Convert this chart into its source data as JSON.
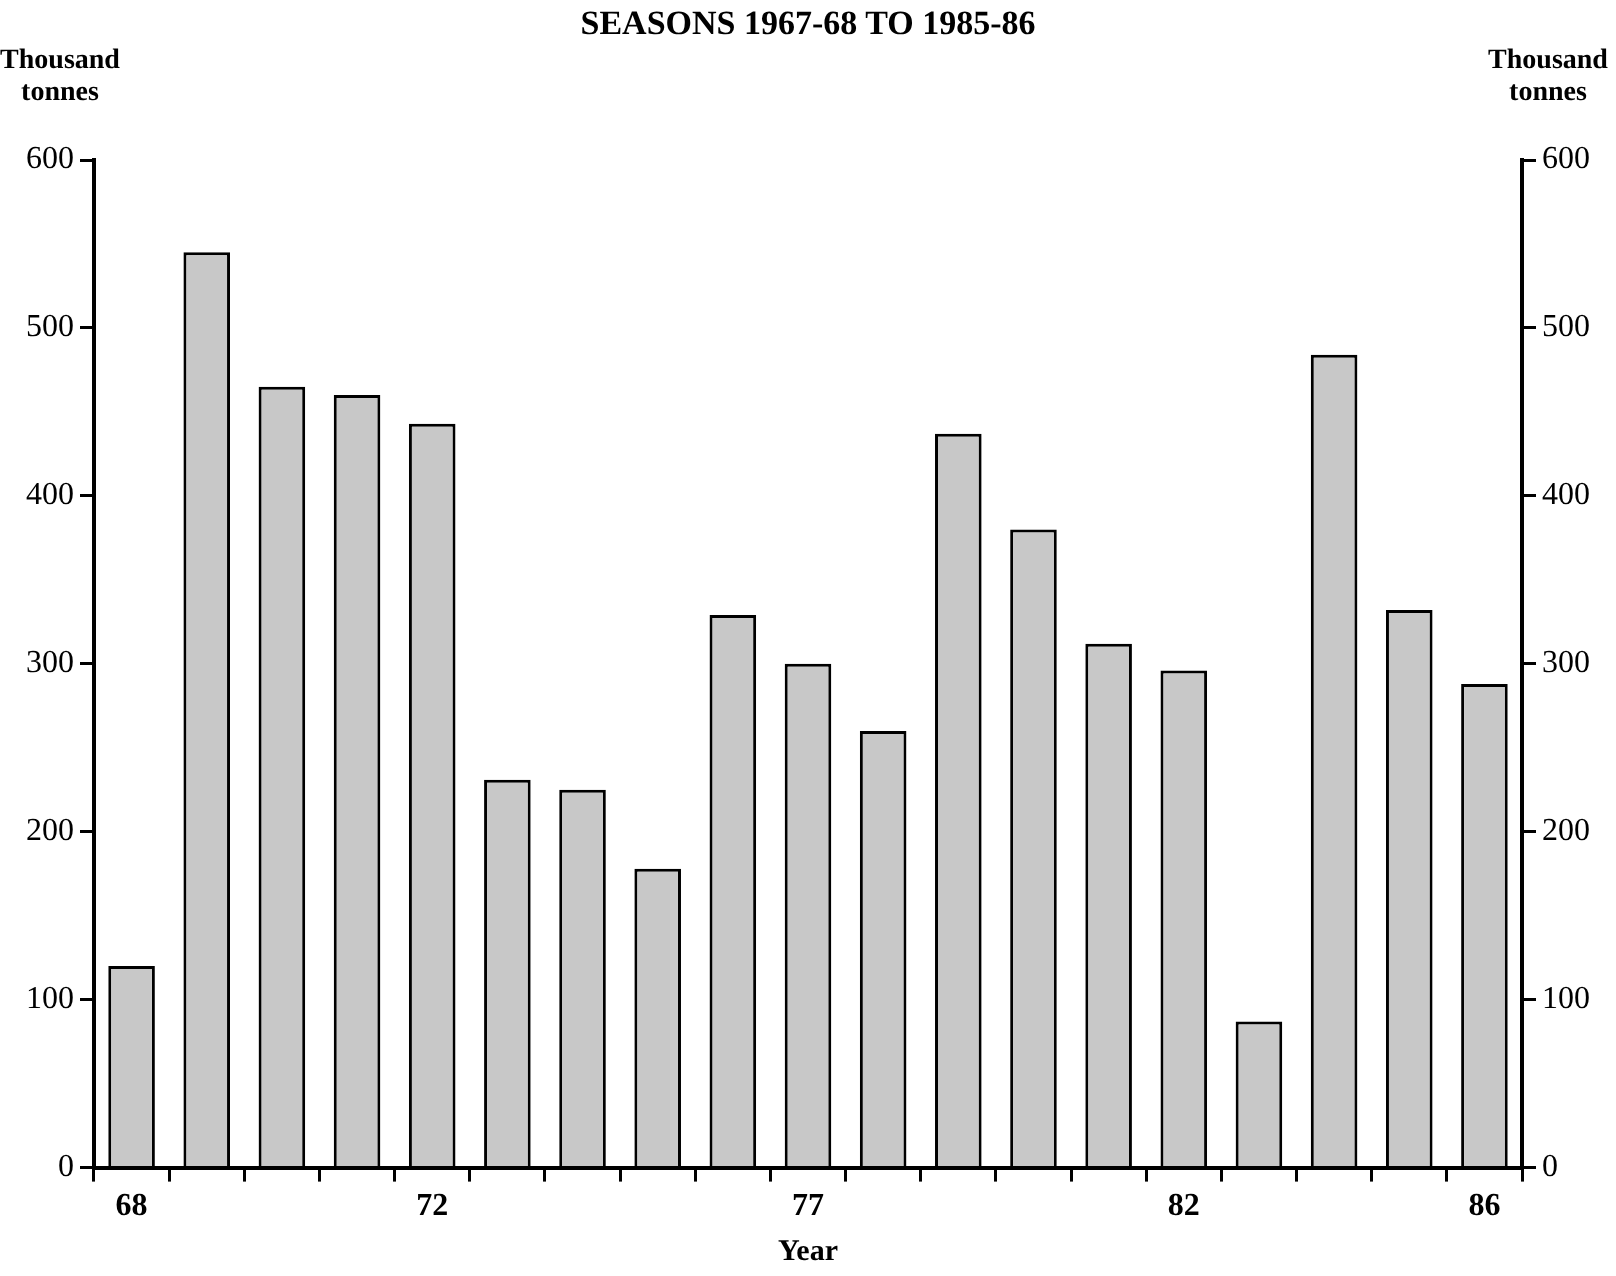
{
  "chart_data": {
    "type": "bar",
    "title": "SEASONS 1967-68 TO 1985-86",
    "xlabel": "Year",
    "ylabel": "Thousand tonnes",
    "y2label": "Thousand tonnes",
    "categories": [
      "68",
      null,
      null,
      null,
      "72",
      null,
      null,
      null,
      null,
      "77",
      null,
      null,
      null,
      null,
      "82",
      null,
      null,
      null,
      "86"
    ],
    "values": [
      120,
      545,
      465,
      460,
      443,
      231,
      225,
      178,
      329,
      300,
      260,
      437,
      380,
      312,
      296,
      87,
      484,
      332,
      288
    ],
    "color": "#c8c8c8",
    "ylim": [
      0,
      600
    ],
    "yticks": [
      0,
      100,
      200,
      300,
      400,
      500,
      600
    ],
    "y2lim": [
      0,
      600
    ],
    "y2ticks": [
      0,
      100,
      200,
      300,
      400,
      500,
      600
    ],
    "grid": false,
    "legend": false
  }
}
